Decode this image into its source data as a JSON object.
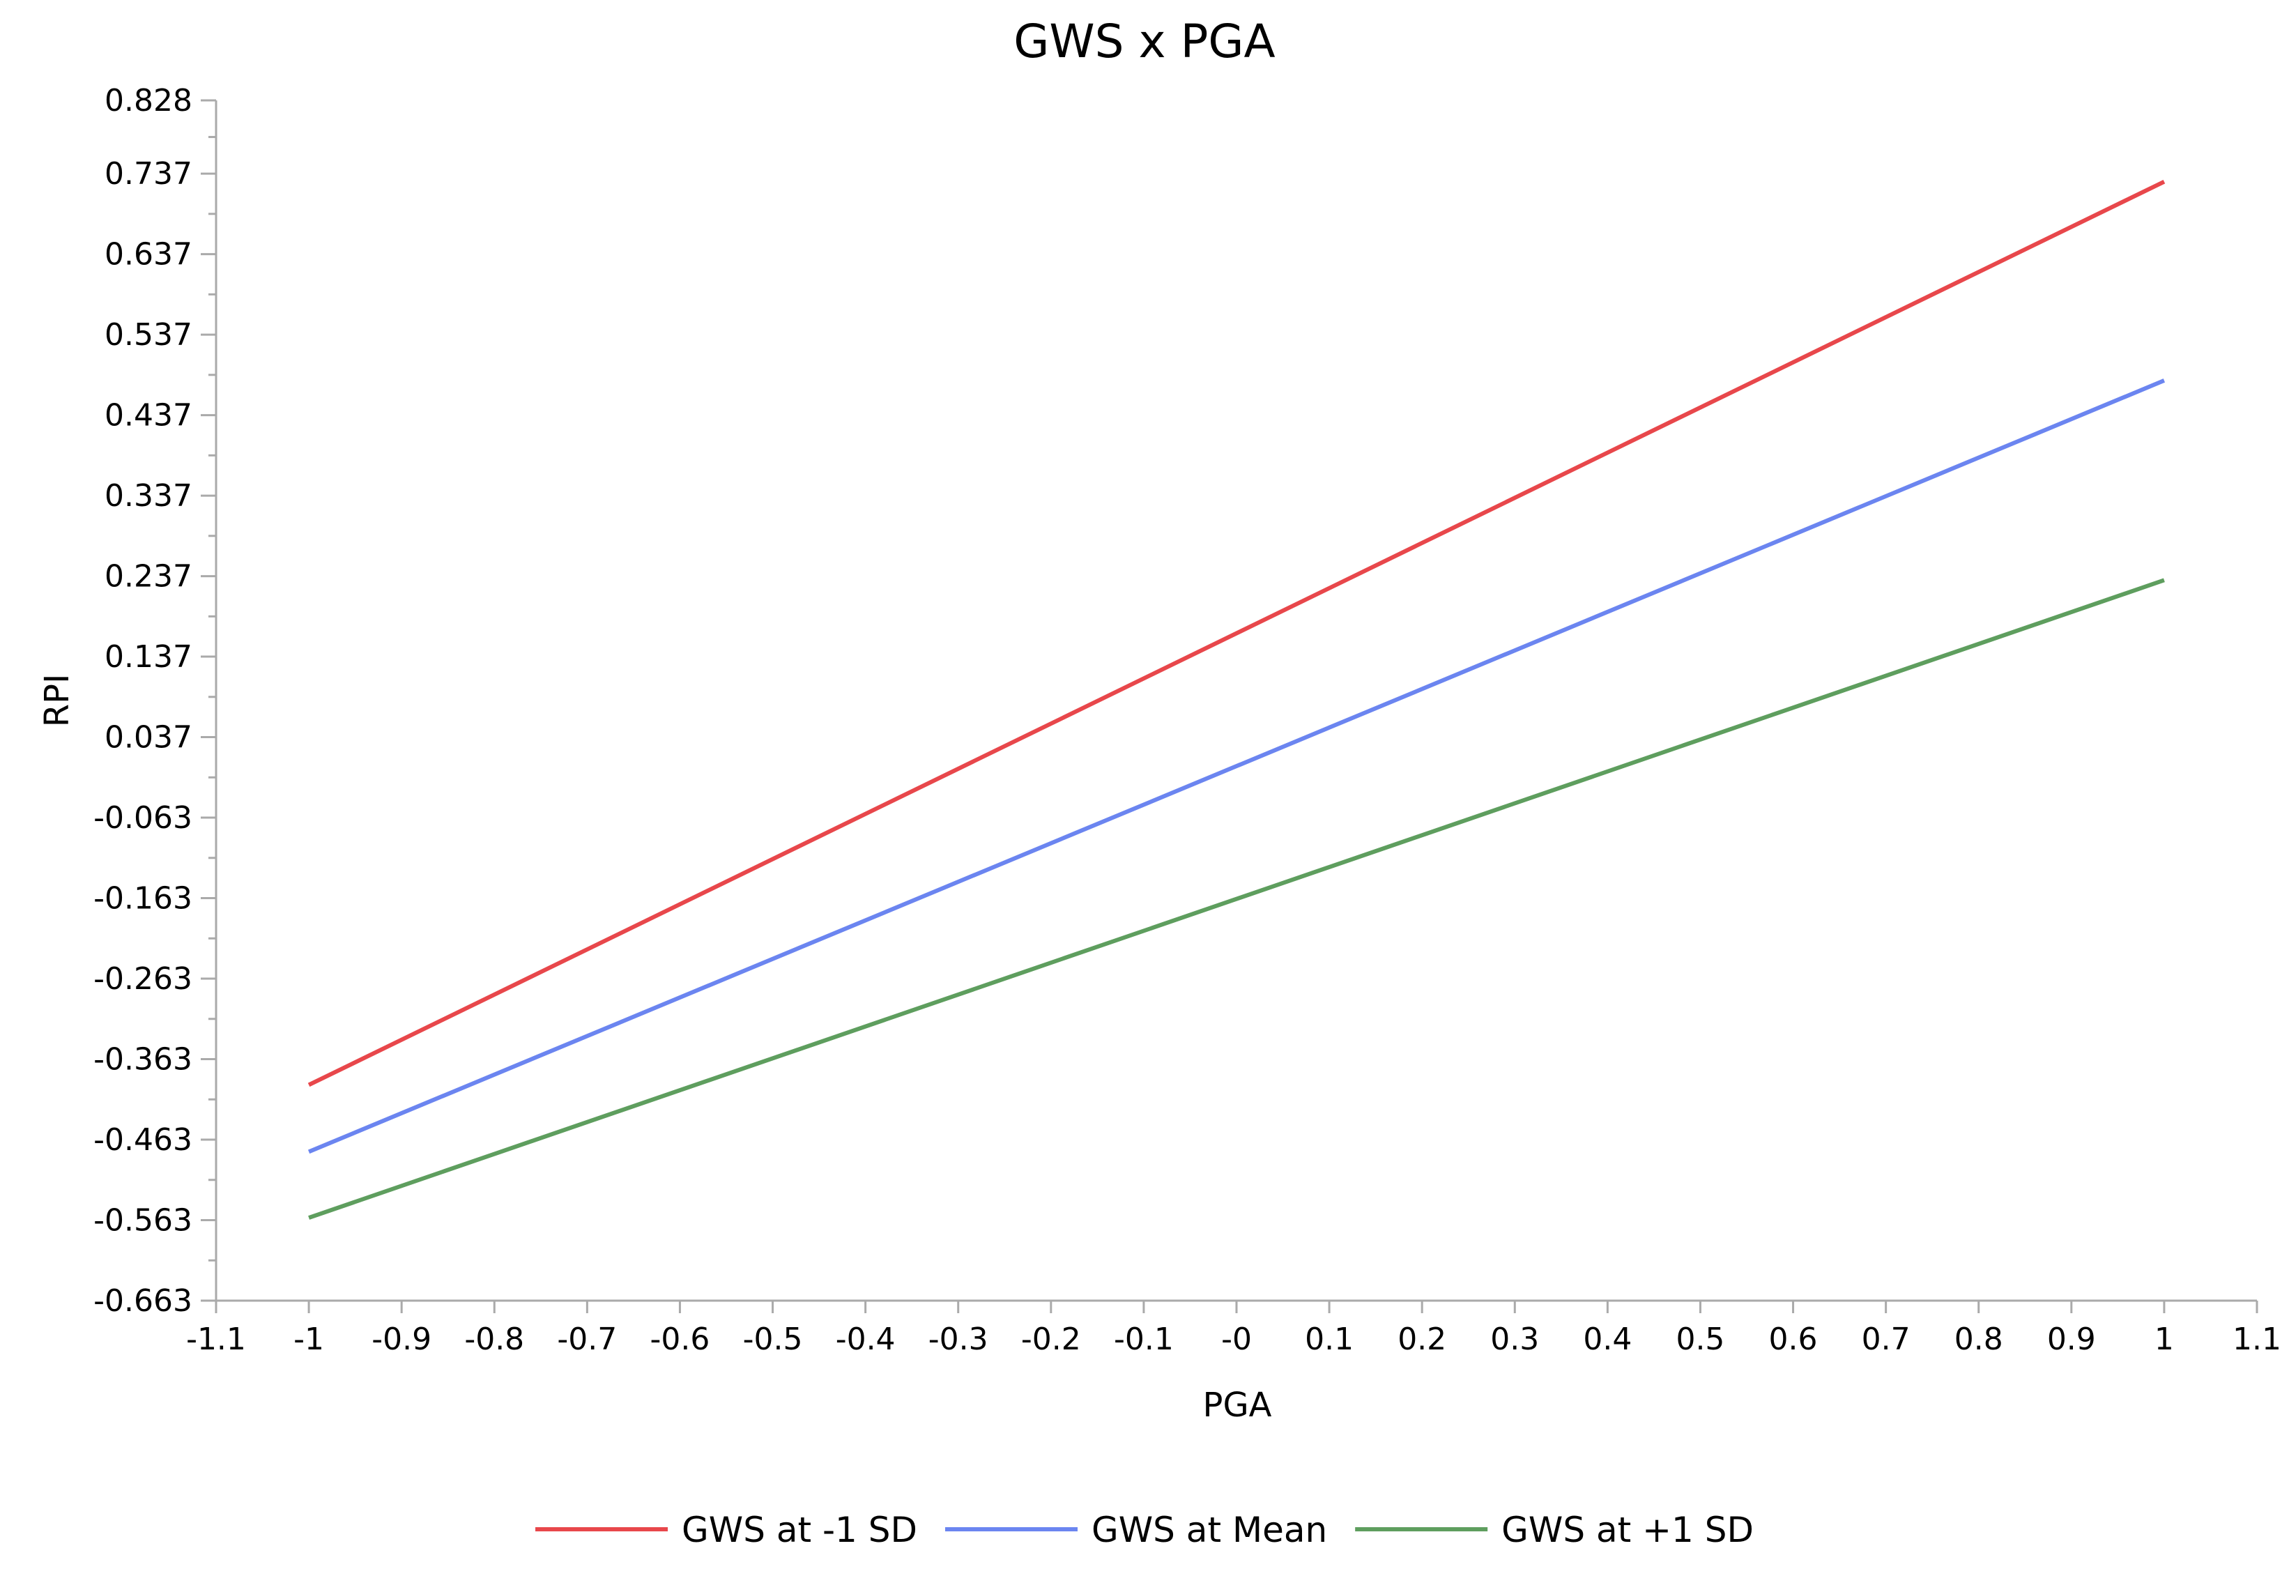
{
  "chart_data": {
    "type": "line",
    "title": "GWS x PGA",
    "xlabel": "PGA",
    "ylabel": "RPI",
    "xlim": [
      -1.1,
      1.1
    ],
    "ylim": [
      -0.663,
      0.828
    ],
    "x_ticks": [
      "-1.1",
      "-1",
      "-0.9",
      "-0.8",
      "-0.7",
      "-0.6",
      "-0.5",
      "-0.4",
      "-0.3",
      "-0.2",
      "-0.1",
      "-0",
      "0.1",
      "0.2",
      "0.3",
      "0.4",
      "0.5",
      "0.6",
      "0.7",
      "0.8",
      "0.9",
      "1",
      "1.1"
    ],
    "y_ticks": [
      "0.828",
      "0.737",
      "0.637",
      "0.537",
      "0.437",
      "0.337",
      "0.237",
      "0.137",
      "0.037",
      "-0.063",
      "-0.163",
      "-0.263",
      "-0.363",
      "-0.463",
      "-0.563",
      "-0.663"
    ],
    "grid": false,
    "legend_position": "bottom",
    "series": [
      {
        "name": "GWS at -1 SD",
        "color": "#e8474b",
        "x": [
          -1,
          1
        ],
        "y": [
          -0.395,
          0.727
        ]
      },
      {
        "name": "GWS at Mean",
        "color": "#6b85f0",
        "x": [
          -1,
          1
        ],
        "y": [
          -0.478,
          0.48
        ]
      },
      {
        "name": "GWS at +1 SD",
        "color": "#5e9e5e",
        "x": [
          -1,
          1
        ],
        "y": [
          -0.56,
          0.232
        ]
      }
    ]
  }
}
